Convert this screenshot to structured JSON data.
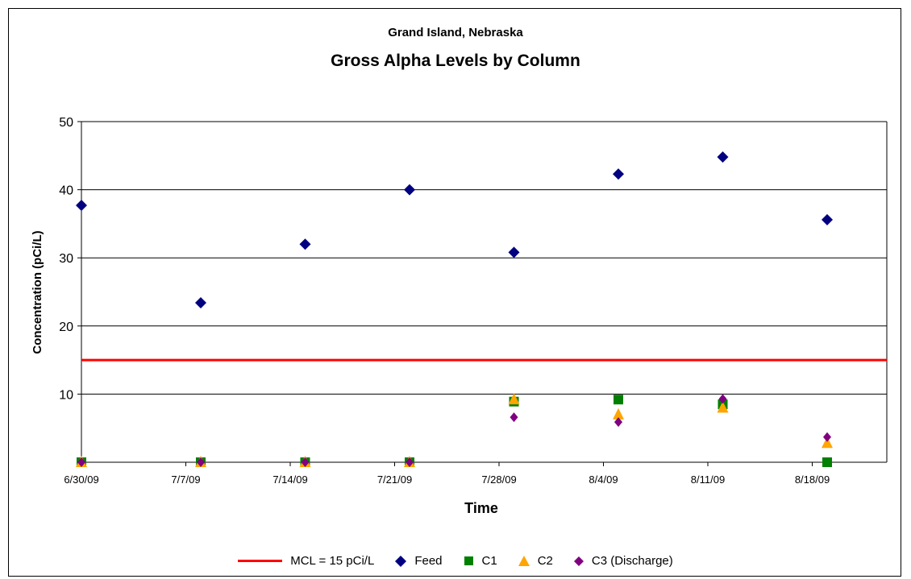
{
  "chart_data": {
    "type": "scatter",
    "subtitle": "Grand Island, Nebraska",
    "title": "Gross Alpha Levels by Column",
    "xlabel": "Time",
    "ylabel": "Concentration (pCi/L)",
    "x_ticks": [
      "6/30/09",
      "7/7/09",
      "7/14/09",
      "7/21/09",
      "7/28/09",
      "8/4/09",
      "8/11/09",
      "8/18/09"
    ],
    "y_ticks": [
      "10",
      "20",
      "30",
      "40",
      "50"
    ],
    "ylim": [
      0,
      50
    ],
    "xlim": [
      "6/30/09",
      "8/23/09"
    ],
    "grid": "horizontal",
    "legend_position": "bottom",
    "reference_line": {
      "name": "MCL = 15 pCi/L",
      "value": 15,
      "color": "#ff0000"
    },
    "series": [
      {
        "name": "Feed",
        "marker": "diamond",
        "color": "#000080",
        "points": [
          {
            "x": "6/30/09",
            "y": 37.7
          },
          {
            "x": "7/8/09",
            "y": 23.4
          },
          {
            "x": "7/15/09",
            "y": 32.0
          },
          {
            "x": "7/22/09",
            "y": 40.0
          },
          {
            "x": "7/29/09",
            "y": 30.8
          },
          {
            "x": "8/5/09",
            "y": 42.3
          },
          {
            "x": "8/12/09",
            "y": 44.8
          },
          {
            "x": "8/19/09",
            "y": 35.6
          }
        ]
      },
      {
        "name": "C1",
        "marker": "square",
        "color": "#008000",
        "points": [
          {
            "x": "6/30/09",
            "y": 0
          },
          {
            "x": "7/8/09",
            "y": 0
          },
          {
            "x": "7/15/09",
            "y": 0
          },
          {
            "x": "7/22/09",
            "y": 0
          },
          {
            "x": "7/29/09",
            "y": 8.9
          },
          {
            "x": "8/5/09",
            "y": 9.2
          },
          {
            "x": "8/12/09",
            "y": 8.5
          },
          {
            "x": "8/19/09",
            "y": 0
          }
        ]
      },
      {
        "name": "C2",
        "marker": "triangle",
        "color": "#ffa500",
        "points": [
          {
            "x": "6/30/09",
            "y": 0
          },
          {
            "x": "7/8/09",
            "y": 0
          },
          {
            "x": "7/15/09",
            "y": 0
          },
          {
            "x": "7/22/09",
            "y": 0
          },
          {
            "x": "7/29/09",
            "y": 9.2
          },
          {
            "x": "8/5/09",
            "y": 7.0
          },
          {
            "x": "8/12/09",
            "y": 8.0
          },
          {
            "x": "8/19/09",
            "y": 2.8
          }
        ]
      },
      {
        "name": "C3 (Discharge)",
        "marker": "diamond-small",
        "color": "#800080",
        "points": [
          {
            "x": "6/30/09",
            "y": 0
          },
          {
            "x": "7/8/09",
            "y": 0
          },
          {
            "x": "7/15/09",
            "y": 0
          },
          {
            "x": "7/22/09",
            "y": 0
          },
          {
            "x": "7/29/09",
            "y": 6.6
          },
          {
            "x": "8/5/09",
            "y": 5.9
          },
          {
            "x": "8/12/09",
            "y": 9.3
          },
          {
            "x": "8/19/09",
            "y": 3.7
          }
        ]
      }
    ]
  }
}
